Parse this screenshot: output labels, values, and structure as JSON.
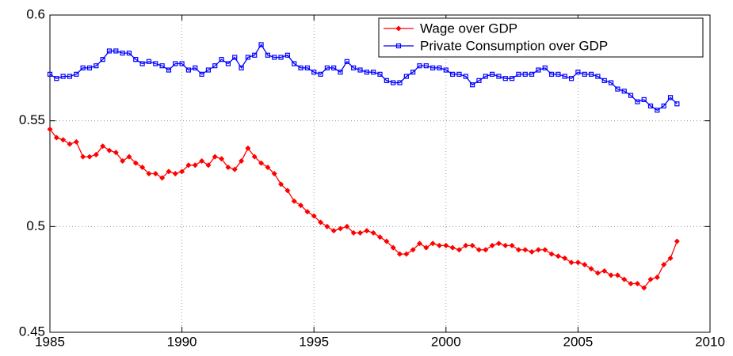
{
  "chart_data": {
    "type": "line",
    "x": [
      1985,
      1985.25,
      1985.5,
      1985.75,
      1986,
      1986.25,
      1986.5,
      1986.75,
      1987,
      1987.25,
      1987.5,
      1987.75,
      1988,
      1988.25,
      1988.5,
      1988.75,
      1989,
      1989.25,
      1989.5,
      1989.75,
      1990,
      1990.25,
      1990.5,
      1990.75,
      1991,
      1991.25,
      1991.5,
      1991.75,
      1992,
      1992.25,
      1992.5,
      1992.75,
      1993,
      1993.25,
      1993.5,
      1993.75,
      1994,
      1994.25,
      1994.5,
      1994.75,
      1995,
      1995.25,
      1995.5,
      1995.75,
      1996,
      1996.25,
      1996.5,
      1996.75,
      1997,
      1997.25,
      1997.5,
      1997.75,
      1998,
      1998.25,
      1998.5,
      1998.75,
      1999,
      1999.25,
      1999.5,
      1999.75,
      2000,
      2000.25,
      2000.5,
      2000.75,
      2001,
      2001.25,
      2001.5,
      2001.75,
      2002,
      2002.25,
      2002.5,
      2002.75,
      2003,
      2003.25,
      2003.5,
      2003.75,
      2004,
      2004.25,
      2004.5,
      2004.75,
      2005,
      2005.25,
      2005.5,
      2005.75,
      2006,
      2006.25,
      2006.5,
      2006.75,
      2007,
      2007.25,
      2007.5,
      2007.75,
      2008,
      2008.25,
      2008.5,
      2008.75
    ],
    "series": [
      {
        "name": "Wage over GDP",
        "color": "#ff0000",
        "marker": "diamond",
        "values": [
          0.546,
          0.542,
          0.541,
          0.539,
          0.54,
          0.533,
          0.533,
          0.534,
          0.538,
          0.536,
          0.535,
          0.531,
          0.533,
          0.53,
          0.528,
          0.525,
          0.525,
          0.523,
          0.526,
          0.525,
          0.526,
          0.529,
          0.529,
          0.531,
          0.529,
          0.533,
          0.532,
          0.528,
          0.527,
          0.531,
          0.537,
          0.533,
          0.53,
          0.528,
          0.525,
          0.52,
          0.517,
          0.512,
          0.51,
          0.507,
          0.505,
          0.502,
          0.5,
          0.498,
          0.499,
          0.5,
          0.497,
          0.497,
          0.498,
          0.497,
          0.495,
          0.493,
          0.49,
          0.487,
          0.487,
          0.489,
          0.492,
          0.49,
          0.492,
          0.491,
          0.491,
          0.49,
          0.489,
          0.491,
          0.491,
          0.489,
          0.489,
          0.491,
          0.492,
          0.491,
          0.491,
          0.489,
          0.489,
          0.488,
          0.489,
          0.489,
          0.487,
          0.486,
          0.485,
          0.483,
          0.483,
          0.482,
          0.48,
          0.478,
          0.479,
          0.477,
          0.477,
          0.475,
          0.473,
          0.473,
          0.471,
          0.475,
          0.476,
          0.482,
          0.485,
          0.493
        ]
      },
      {
        "name": "Private Consumption over GDP",
        "color": "#0000ff",
        "marker": "square",
        "values": [
          0.572,
          0.57,
          0.571,
          0.571,
          0.572,
          0.575,
          0.575,
          0.576,
          0.579,
          0.583,
          0.583,
          0.582,
          0.582,
          0.579,
          0.577,
          0.578,
          0.577,
          0.576,
          0.574,
          0.577,
          0.577,
          0.574,
          0.575,
          0.572,
          0.574,
          0.576,
          0.579,
          0.577,
          0.58,
          0.575,
          0.58,
          0.581,
          0.586,
          0.581,
          0.58,
          0.58,
          0.581,
          0.577,
          0.575,
          0.575,
          0.573,
          0.572,
          0.575,
          0.575,
          0.573,
          0.578,
          0.575,
          0.574,
          0.573,
          0.573,
          0.572,
          0.569,
          0.568,
          0.568,
          0.571,
          0.573,
          0.576,
          0.576,
          0.575,
          0.575,
          0.574,
          0.572,
          0.572,
          0.571,
          0.567,
          0.569,
          0.571,
          0.572,
          0.571,
          0.57,
          0.57,
          0.572,
          0.572,
          0.572,
          0.574,
          0.575,
          0.572,
          0.572,
          0.571,
          0.57,
          0.573,
          0.572,
          0.572,
          0.571,
          0.569,
          0.568,
          0.565,
          0.564,
          0.562,
          0.559,
          0.56,
          0.557,
          0.555,
          0.557,
          0.561,
          0.558
        ]
      }
    ],
    "xlim": [
      1985,
      2010
    ],
    "xticks": [
      1985,
      1990,
      1995,
      2000,
      2005,
      2010
    ],
    "ylim": [
      0.45,
      0.6
    ],
    "yticks": [
      0.45,
      0.5,
      0.55,
      0.6
    ],
    "grid": true,
    "legend": "upper-right"
  }
}
